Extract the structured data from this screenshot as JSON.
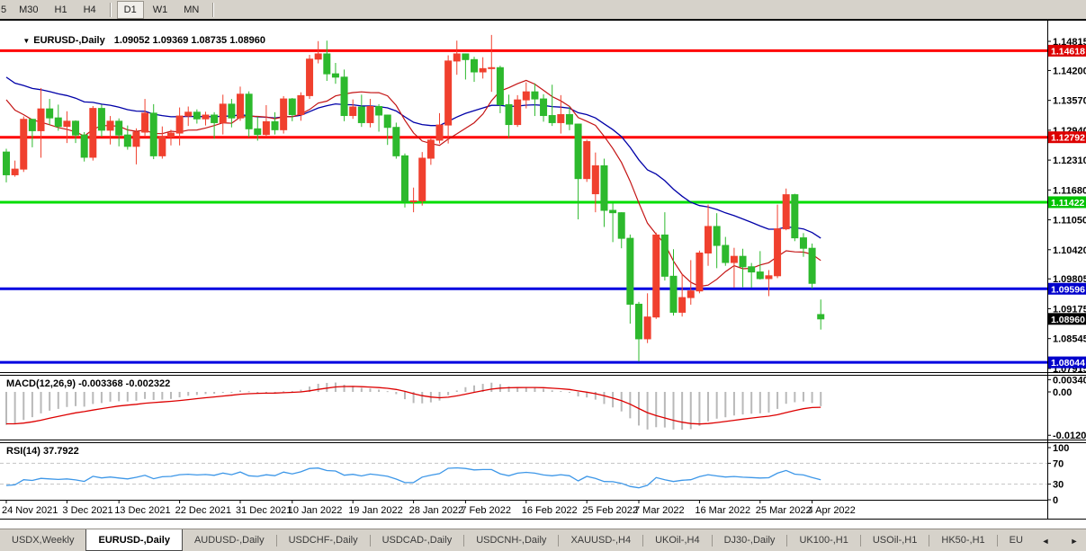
{
  "toolbar": {
    "timeframes": [
      "5",
      "M30",
      "H1",
      "H4",
      "D1",
      "W1",
      "MN"
    ],
    "active": "D1"
  },
  "icons": {
    "symbol_dropdown": "▼",
    "scroll_left": "◄",
    "scroll_right": "►"
  },
  "chart": {
    "title_symbol": "EURUSD-,Daily",
    "title_ohlc": "1.09052 1.09369 1.08735 1.08960",
    "macd_label": "MACD(12,26,9) -0.003368 -0.002322",
    "rsi_label": "RSI(14) 37.7922"
  },
  "chart_data": {
    "type": "candlestick",
    "symbol": "EURUSD-,Daily",
    "title_ohlc": {
      "open": "1.09052",
      "high": "1.09369",
      "low": "1.08735",
      "close": "1.08960"
    },
    "note": "up candles are red, down candles are green (CN convention)",
    "up_color": "#f0402e",
    "down_color": "#2db92d",
    "candles": [
      [
        1.1248,
        1.1255,
        1.1184,
        1.12
      ],
      [
        1.12,
        1.123,
        1.1196,
        1.1212
      ],
      [
        1.1212,
        1.1323,
        1.1206,
        1.1317
      ],
      [
        1.1317,
        1.1318,
        1.1258,
        1.1293
      ],
      [
        1.1293,
        1.1383,
        1.1236,
        1.1339
      ],
      [
        1.1339,
        1.136,
        1.1305,
        1.132
      ],
      [
        1.132,
        1.1348,
        1.1293,
        1.1302
      ],
      [
        1.1302,
        1.1334,
        1.1267,
        1.1313
      ],
      [
        1.1313,
        1.1315,
        1.1267,
        1.1284
      ],
      [
        1.1284,
        1.129,
        1.1228,
        1.1237
      ],
      [
        1.1237,
        1.1345,
        1.123,
        1.134
      ],
      [
        1.134,
        1.1348,
        1.128,
        1.1294
      ],
      [
        1.1294,
        1.1324,
        1.1264,
        1.1313
      ],
      [
        1.1313,
        1.1319,
        1.126,
        1.1284
      ],
      [
        1.1284,
        1.1304,
        1.1253,
        1.126
      ],
      [
        1.126,
        1.1298,
        1.1222,
        1.129
      ],
      [
        1.129,
        1.136,
        1.128,
        1.133
      ],
      [
        1.133,
        1.1349,
        1.1233,
        1.124
      ],
      [
        1.124,
        1.1302,
        1.1234,
        1.128
      ],
      [
        1.128,
        1.1295,
        1.1262,
        1.1288
      ],
      [
        1.1288,
        1.1342,
        1.1262,
        1.1324
      ],
      [
        1.1324,
        1.1344,
        1.1303,
        1.1332
      ],
      [
        1.1332,
        1.1338,
        1.1308,
        1.1318
      ],
      [
        1.1318,
        1.1333,
        1.1304,
        1.1326
      ],
      [
        1.1326,
        1.1332,
        1.1276,
        1.131
      ],
      [
        1.131,
        1.1369,
        1.1285,
        1.1349
      ],
      [
        1.1349,
        1.136,
        1.13,
        1.132
      ],
      [
        1.132,
        1.1386,
        1.1314,
        1.137
      ],
      [
        1.137,
        1.1376,
        1.1279,
        1.1297
      ],
      [
        1.1297,
        1.1323,
        1.1272,
        1.1285
      ],
      [
        1.1285,
        1.1347,
        1.128,
        1.1312
      ],
      [
        1.1312,
        1.1332,
        1.1285,
        1.1295
      ],
      [
        1.1295,
        1.1366,
        1.1287,
        1.136
      ],
      [
        1.136,
        1.1362,
        1.1313,
        1.1327
      ],
      [
        1.1327,
        1.1374,
        1.1314,
        1.1367
      ],
      [
        1.1367,
        1.1453,
        1.136,
        1.1444
      ],
      [
        1.1444,
        1.1482,
        1.1435,
        1.1455
      ],
      [
        1.1455,
        1.1483,
        1.1398,
        1.1413
      ],
      [
        1.1413,
        1.1436,
        1.1392,
        1.1406
      ],
      [
        1.1406,
        1.1422,
        1.1313,
        1.1325
      ],
      [
        1.1325,
        1.1359,
        1.1318,
        1.1343
      ],
      [
        1.1343,
        1.1369,
        1.1301,
        1.131
      ],
      [
        1.131,
        1.136,
        1.13,
        1.1344
      ],
      [
        1.1344,
        1.1349,
        1.1291,
        1.1326
      ],
      [
        1.1326,
        1.1327,
        1.1263,
        1.13
      ],
      [
        1.13,
        1.131,
        1.1234,
        1.124
      ],
      [
        1.124,
        1.1245,
        1.1131,
        1.1144
      ],
      [
        1.1144,
        1.1173,
        1.1121,
        1.1145
      ],
      [
        1.1145,
        1.1248,
        1.1135,
        1.1235
      ],
      [
        1.1235,
        1.1279,
        1.1221,
        1.1273
      ],
      [
        1.1273,
        1.133,
        1.1266,
        1.1305
      ],
      [
        1.1305,
        1.1452,
        1.1266,
        1.144
      ],
      [
        1.144,
        1.1483,
        1.1411,
        1.1455
      ],
      [
        1.1455,
        1.1456,
        1.1401,
        1.1443
      ],
      [
        1.1443,
        1.1449,
        1.1396,
        1.1417
      ],
      [
        1.1417,
        1.1448,
        1.1403,
        1.1424
      ],
      [
        1.1424,
        1.1495,
        1.1375,
        1.1426
      ],
      [
        1.1426,
        1.143,
        1.133,
        1.1348
      ],
      [
        1.1348,
        1.1369,
        1.1278,
        1.1306
      ],
      [
        1.1306,
        1.1368,
        1.1301,
        1.1358
      ],
      [
        1.1358,
        1.1395,
        1.134,
        1.1375
      ],
      [
        1.1375,
        1.1393,
        1.1324,
        1.136
      ],
      [
        1.136,
        1.137,
        1.1312,
        1.1325
      ],
      [
        1.1325,
        1.139,
        1.1303,
        1.131
      ],
      [
        1.131,
        1.1368,
        1.1287,
        1.1327
      ],
      [
        1.1327,
        1.1343,
        1.1294,
        1.1307
      ],
      [
        1.1307,
        1.1308,
        1.1106,
        1.1192
      ],
      [
        1.1192,
        1.1274,
        1.1185,
        1.127
      ],
      [
        1.116,
        1.1247,
        1.1121,
        1.1219
      ],
      [
        1.1219,
        1.1234,
        1.109,
        1.1125
      ],
      [
        1.1125,
        1.114,
        1.1058,
        1.112
      ],
      [
        1.112,
        1.1121,
        1.1045,
        1.1066
      ],
      [
        1.1066,
        1.1074,
        1.0886,
        1.0927
      ],
      [
        1.0927,
        1.0932,
        1.0806,
        1.0854
      ],
      [
        1.0854,
        1.095,
        1.0845,
        1.09
      ],
      [
        1.09,
        1.1078,
        1.0896,
        1.1073
      ],
      [
        1.1073,
        1.1121,
        1.0977,
        1.0986
      ],
      [
        1.0986,
        1.1043,
        1.0903,
        1.091
      ],
      [
        1.091,
        1.0991,
        1.0901,
        1.0941
      ],
      [
        1.0941,
        1.102,
        1.0926,
        1.0955
      ],
      [
        1.0955,
        1.104,
        1.095,
        1.1035
      ],
      [
        1.1035,
        1.1137,
        1.1008,
        1.1091
      ],
      [
        1.1091,
        1.1119,
        1.1003,
        1.1051
      ],
      [
        1.1051,
        1.1069,
        1.1008,
        1.1015
      ],
      [
        1.1015,
        1.1046,
        1.0962,
        1.1028
      ],
      [
        1.1028,
        1.1044,
        1.0963,
        1.1006
      ],
      [
        1.1006,
        1.1014,
        1.0962,
        1.0995
      ],
      [
        1.0995,
        1.1039,
        1.0979,
        1.0981
      ],
      [
        1.0981,
        1.0999,
        1.0944,
        1.0987
      ],
      [
        1.0987,
        1.1137,
        1.0982,
        1.1086
      ],
      [
        1.1086,
        1.1171,
        1.1083,
        1.1158
      ],
      [
        1.1158,
        1.116,
        1.106,
        1.1067
      ],
      [
        1.1067,
        1.1077,
        1.1027,
        1.1045
      ],
      [
        1.1045,
        1.1055,
        1.096,
        1.0971
      ],
      [
        1.09052,
        1.09369,
        1.08735,
        1.0896
      ]
    ],
    "x_labels": [
      {
        "index": 0,
        "label": "24 Nov 2021"
      },
      {
        "index": 7,
        "label": "3 Dec 2021"
      },
      {
        "index": 13,
        "label": "13 Dec 2021"
      },
      {
        "index": 20,
        "label": "22 Dec 2021"
      },
      {
        "index": 27,
        "label": "31 Dec 2021"
      },
      {
        "index": 33,
        "label": "10 Jan 2022"
      },
      {
        "index": 40,
        "label": "19 Jan 2022"
      },
      {
        "index": 47,
        "label": "28 Jan 2022"
      },
      {
        "index": 53,
        "label": "7 Feb 2022"
      },
      {
        "index": 60,
        "label": "16 Feb 2022"
      },
      {
        "index": 67,
        "label": "25 Feb 2022"
      },
      {
        "index": 73,
        "label": "7 Mar 2022"
      },
      {
        "index": 80,
        "label": "16 Mar 2022"
      },
      {
        "index": 87,
        "label": "25 Mar 2022"
      },
      {
        "index": 93,
        "label": "4 Apr 2022"
      }
    ],
    "price_ticks": [
      "1.14815",
      "1.14200",
      "1.13570",
      "1.12940",
      "1.12310",
      "1.11680",
      "1.11050",
      "1.10420",
      "1.09805",
      "1.09175",
      "1.08545",
      "1.07915"
    ],
    "levels": [
      {
        "price": 1.14618,
        "label": "1.14618",
        "line_color": "#ff0000",
        "badge_color": "#dd0000"
      },
      {
        "price": 1.12792,
        "label": "1.12792",
        "line_color": "#ff0000",
        "badge_color": "#dd0000"
      },
      {
        "price": 1.11422,
        "label": "1.11422",
        "line_color": "#00dd00",
        "badge_color": "#00c300"
      },
      {
        "price": 1.09596,
        "label": "1.09596",
        "line_color": "#0000e0",
        "badge_color": "#0000cc"
      },
      {
        "price": 1.08044,
        "label": "1.08044",
        "line_color": "#0000e0",
        "badge_color": "#0000cc"
      }
    ],
    "current_price": {
      "price": 1.0896,
      "label": "1.08960",
      "badge_color": "#000000"
    },
    "moving_averages": {
      "red": {
        "type": "SMA",
        "period": 10,
        "color": "#c41414",
        "prehistory": [
          1.143,
          1.1415,
          1.14,
          1.1388,
          1.1375,
          1.1362,
          1.135,
          1.1338,
          1.1325
        ]
      },
      "blue": {
        "type": "EMA",
        "period": 30,
        "color": "#0000a8",
        "init": 1.142
      }
    },
    "macd": {
      "label": "MACD(12,26,9) -0.003368 -0.002322",
      "macd_value": "-0.003368",
      "signal_value": "-0.002322",
      "scale_ticks": [
        "0.003408",
        "0.00",
        "-0.012058"
      ],
      "histogram_color": "#b9b9b9",
      "signal_color": "#dd0000",
      "ema12_init": 1.128,
      "ema26_init": 1.1372,
      "signal_init": -0.0088
    },
    "rsi": {
      "label": "RSI(14) 37.7922",
      "value": "37.7922",
      "scale_ticks": [
        100,
        70,
        30,
        0
      ],
      "dashed_levels": [
        70,
        30
      ],
      "line_color": "#3d97e8",
      "dash_color": "#c4c4c4",
      "avg_gain_init": 0.0016,
      "avg_loss_init": 0.004,
      "prev_close_seed": 1.123
    }
  },
  "tabs": {
    "items": [
      {
        "label": "USDX,Weekly",
        "active": false
      },
      {
        "label": "EURUSD-,Daily",
        "active": true
      },
      {
        "label": "AUDUSD-,Daily",
        "active": false
      },
      {
        "label": "USDCHF-,Daily",
        "active": false
      },
      {
        "label": "USDCAD-,Daily",
        "active": false
      },
      {
        "label": "USDCNH-,Daily",
        "active": false
      },
      {
        "label": "XAUUSD-,H4",
        "active": false
      },
      {
        "label": "UKOil-,H4",
        "active": false
      },
      {
        "label": "DJ30-,Daily",
        "active": false
      },
      {
        "label": "UK100-,H1",
        "active": false
      },
      {
        "label": "USOil-,H1",
        "active": false
      },
      {
        "label": "HK50-,H1",
        "active": false
      },
      {
        "label": "EU",
        "active": false
      }
    ]
  }
}
